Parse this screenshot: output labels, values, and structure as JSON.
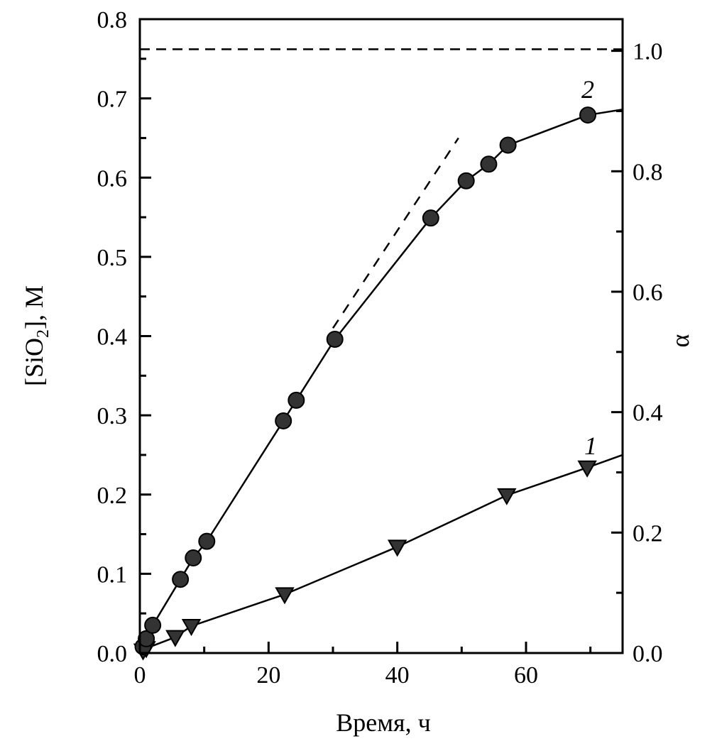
{
  "chart_data": {
    "type": "line",
    "title": "",
    "xlabel": "Время, ч",
    "ylabel_left": {
      "prefix": "[SiO",
      "sub": "2",
      "suffix": "], M"
    },
    "ylabel_right": "α",
    "xlim": [
      0,
      75
    ],
    "ylim_left": [
      0,
      0.8
    ],
    "ylim_right": [
      0,
      1.0526
    ],
    "x_ticks": [
      "0",
      "20",
      "40",
      "60"
    ],
    "y_ticks_left": [
      "0.0",
      "0.1",
      "0.2",
      "0.3",
      "0.4",
      "0.5",
      "0.6",
      "0.7",
      "0.8"
    ],
    "y_ticks_right": [
      "0.0",
      "0.2",
      "0.4",
      "0.6",
      "0.8",
      "1.0"
    ],
    "grid": false,
    "series": [
      {
        "name": "1",
        "marker": "triangle-down",
        "x": [
          0.5,
          1,
          5.5,
          8,
          22.5,
          40,
          57,
          69.5
        ],
        "y": [
          0.003,
          0.006,
          0.02,
          0.034,
          0.074,
          0.134,
          0.199,
          0.234
        ],
        "fit_end": [
          75,
          0.25
        ]
      },
      {
        "name": "2",
        "marker": "circle",
        "x": [
          0.5,
          1,
          2,
          6.3,
          8.3,
          10.4,
          22.3,
          24.3,
          30.3,
          45.2,
          50.7,
          54.2,
          57.2,
          69.6
        ],
        "y": [
          0.008,
          0.018,
          0.035,
          0.093,
          0.12,
          0.141,
          0.293,
          0.319,
          0.396,
          0.549,
          0.596,
          0.617,
          0.641,
          0.679
        ],
        "fit_end": [
          75,
          0.686
        ]
      }
    ],
    "reference_lines": [
      {
        "name": "alpha-1.0",
        "style": "dashed",
        "y": 0.762
      },
      {
        "name": "initial-slope",
        "style": "dashed",
        "x": [
          30,
          49.5
        ],
        "y": [
          0.41,
          0.65
        ]
      }
    ],
    "annotations": [
      "1",
      "2"
    ]
  }
}
